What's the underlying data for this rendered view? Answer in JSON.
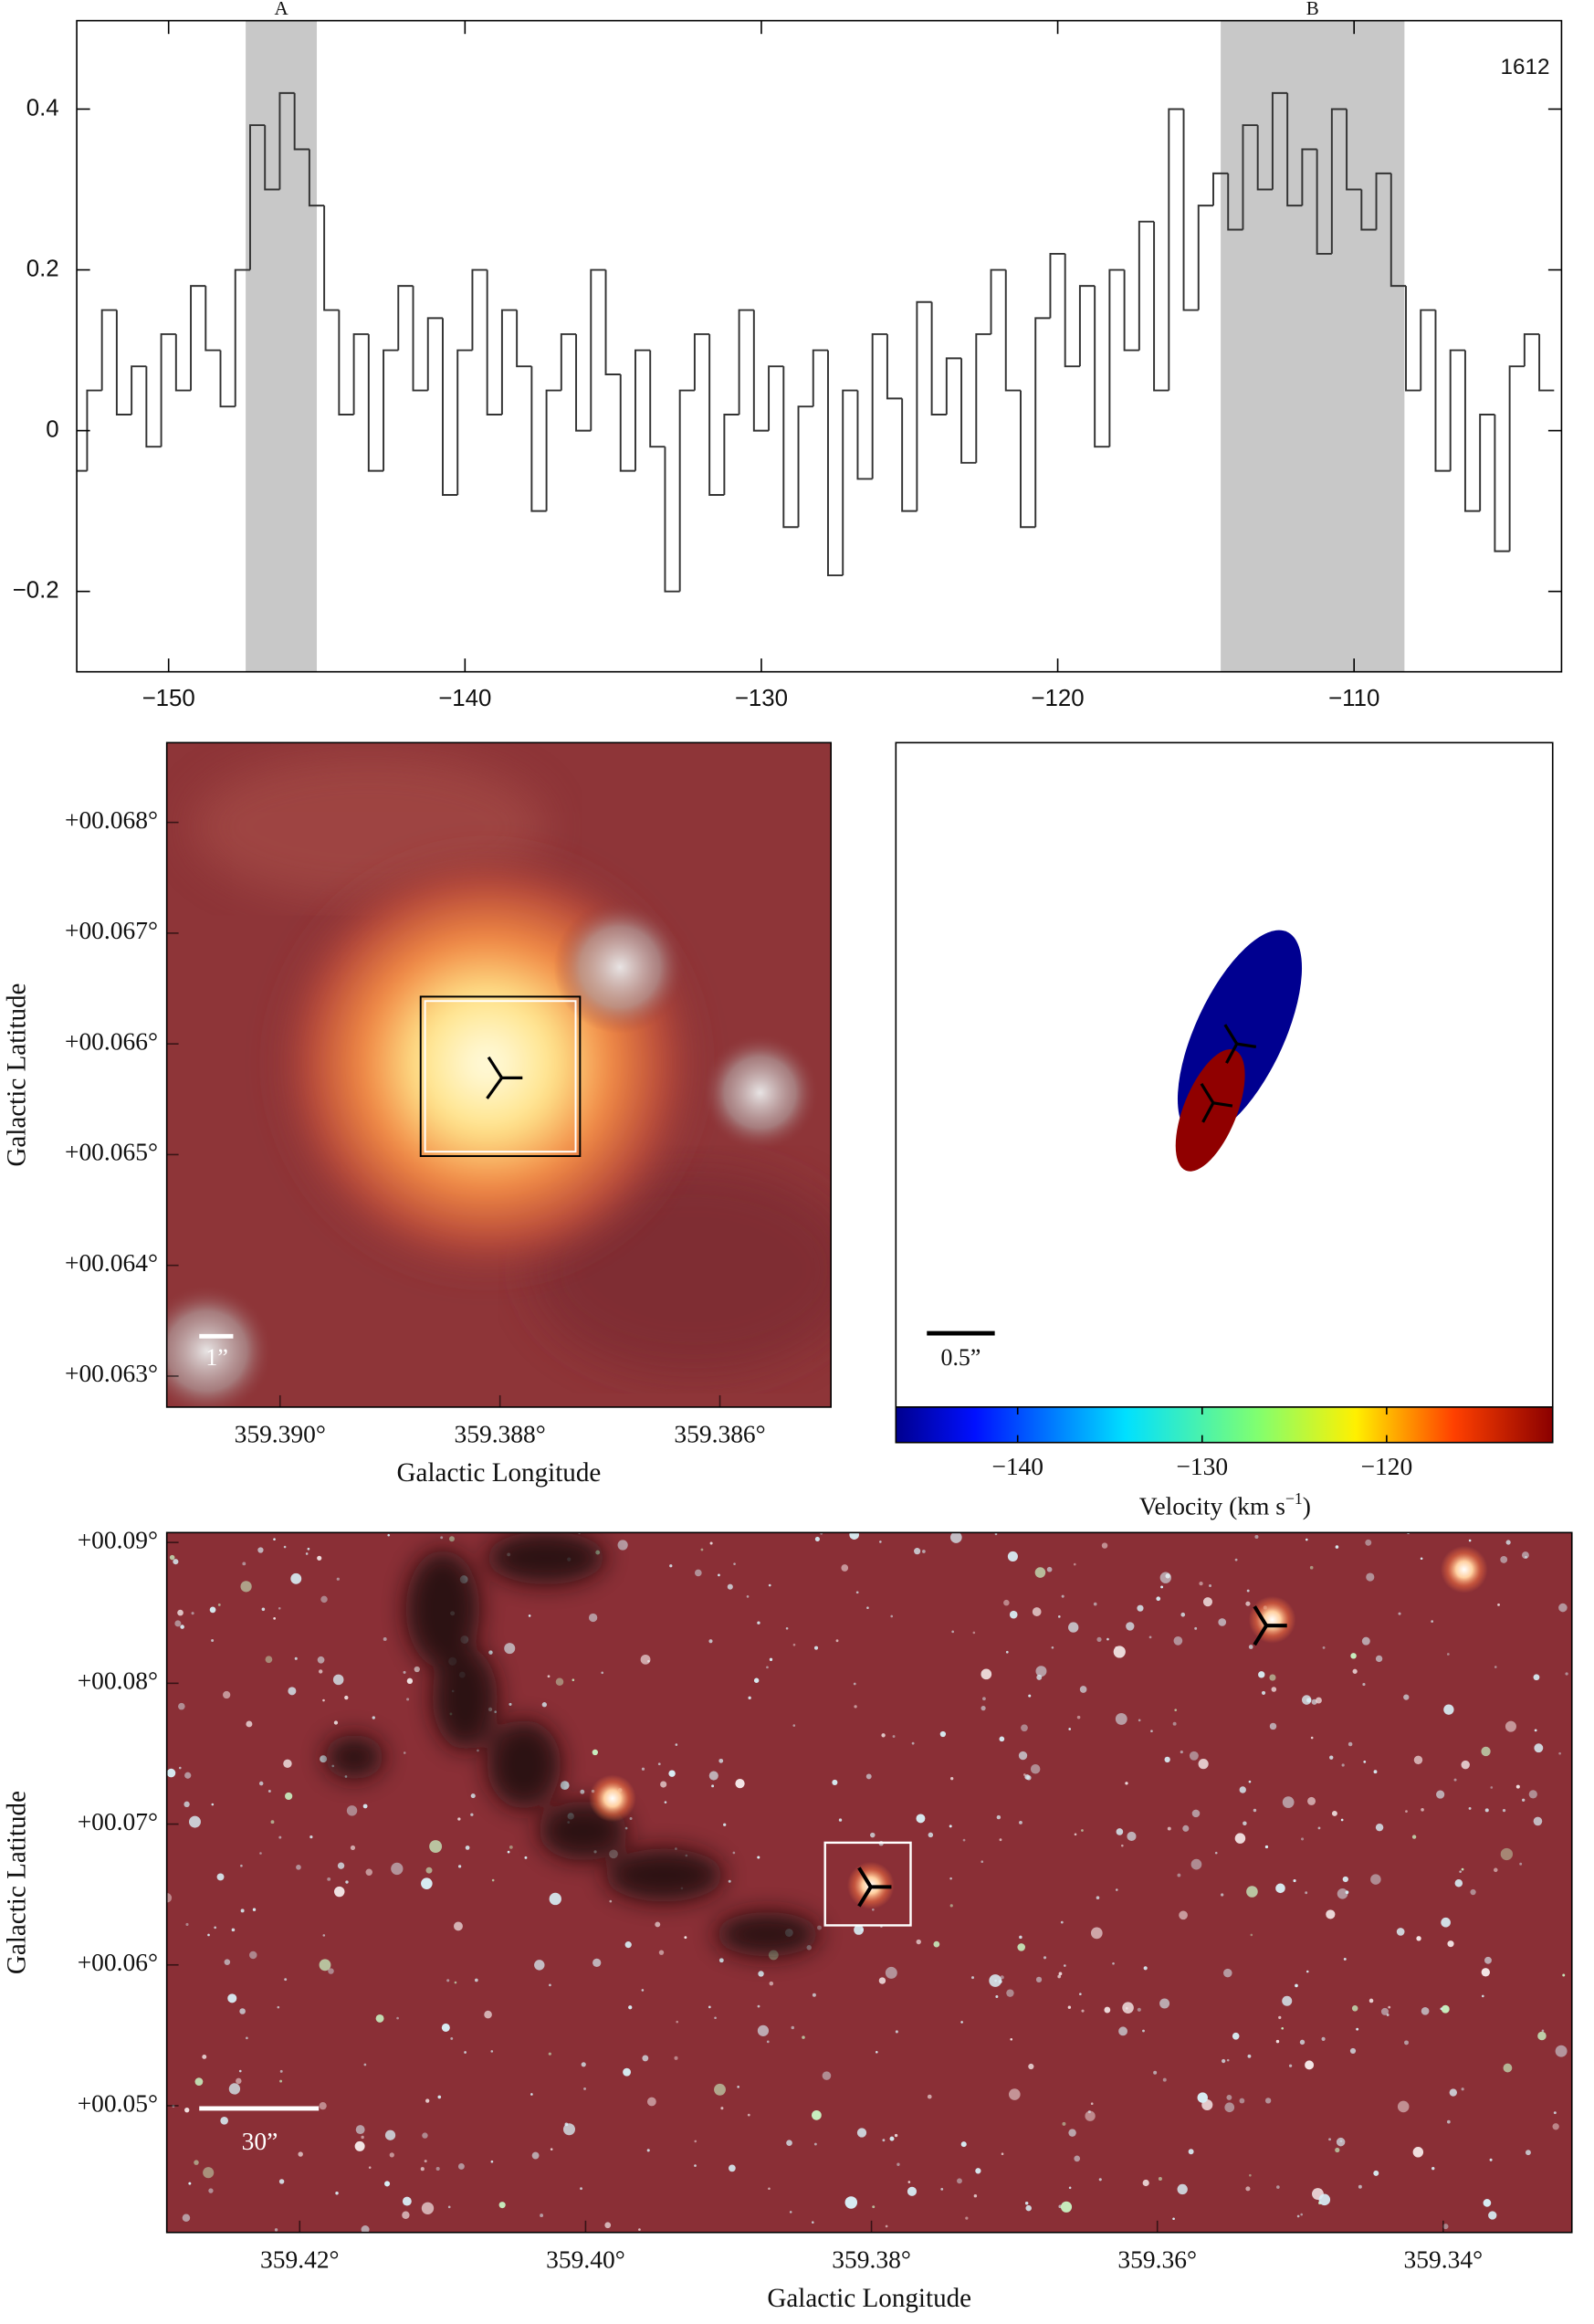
{
  "chart_data": [
    {
      "type": "step",
      "color": "#333333",
      "annotation": "1612",
      "regions": [
        {
          "label": "A",
          "range": [
            -147.4,
            -145.0
          ]
        },
        {
          "label": "B",
          "range": [
            -114.5,
            -108.3
          ]
        }
      ],
      "x": [
        -153,
        -152.5,
        -152,
        -151.5,
        -151,
        -150.5,
        -150,
        -149.5,
        -149,
        -148.5,
        -148,
        -147.5,
        -147,
        -146.5,
        -146,
        -145.5,
        -145,
        -144.5,
        -144,
        -143.5,
        -143,
        -142.5,
        -142,
        -141.5,
        -141,
        -140.5,
        -140,
        -139.5,
        -139,
        -138.5,
        -138,
        -137.5,
        -137,
        -136.5,
        -136,
        -135.5,
        -135,
        -134.5,
        -134,
        -133.5,
        -133,
        -132.5,
        -132,
        -131.5,
        -131,
        -130.5,
        -130,
        -129.5,
        -129,
        -128.5,
        -128,
        -127.5,
        -127,
        -126.5,
        -126,
        -125.5,
        -125,
        -124.5,
        -124,
        -123.5,
        -123,
        -122.5,
        -122,
        -121.5,
        -121,
        -120.5,
        -120,
        -119.5,
        -119,
        -118.5,
        -118,
        -117.5,
        -117,
        -116.5,
        -116,
        -115.5,
        -115,
        -114.5,
        -114,
        -113.5,
        -113,
        -112.5,
        -112,
        -111.5,
        -111,
        -110.5,
        -110,
        -109.5,
        -109,
        -108.5,
        -108,
        -107.5,
        -107,
        -106.5,
        -106,
        -105.5,
        -105,
        -104.5,
        -104,
        -103.5
      ],
      "values": [
        -0.05,
        0.05,
        0.15,
        0.02,
        0.08,
        -0.02,
        0.12,
        0.05,
        0.18,
        0.1,
        0.03,
        0.2,
        0.38,
        0.3,
        0.42,
        0.35,
        0.28,
        0.15,
        0.02,
        0.12,
        -0.05,
        0.1,
        0.18,
        0.05,
        0.14,
        -0.08,
        0.1,
        0.2,
        0.02,
        0.15,
        0.08,
        -0.1,
        0.05,
        0.12,
        0.0,
        0.2,
        0.07,
        -0.05,
        0.1,
        -0.02,
        -0.2,
        0.05,
        0.12,
        -0.08,
        0.02,
        0.15,
        0.0,
        0.08,
        -0.12,
        0.03,
        0.1,
        -0.18,
        0.05,
        -0.06,
        0.12,
        0.04,
        -0.1,
        0.16,
        0.02,
        0.09,
        -0.04,
        0.12,
        0.2,
        0.05,
        -0.12,
        0.14,
        0.22,
        0.08,
        0.18,
        -0.02,
        0.2,
        0.1,
        0.26,
        0.05,
        0.4,
        0.15,
        0.28,
        0.32,
        0.25,
        0.38,
        0.3,
        0.42,
        0.28,
        0.35,
        0.22,
        0.4,
        0.3,
        0.25,
        0.32,
        0.18,
        0.05,
        0.15,
        -0.05,
        0.1,
        -0.1,
        0.02,
        -0.15,
        0.08,
        0.12,
        0.05
      ],
      "xlim": [
        -153.1,
        -103.0
      ],
      "ylim": [
        -0.3,
        0.51
      ],
      "xticks": [
        {
          "value": -150,
          "label": "−150"
        },
        {
          "value": -140,
          "label": "−140"
        },
        {
          "value": -130,
          "label": "−130"
        },
        {
          "value": -120,
          "label": "−120"
        },
        {
          "value": -110,
          "label": "−110"
        }
      ],
      "yticks": [
        {
          "value": -0.2,
          "label": "−0.2"
        },
        0,
        0.2,
        0.4
      ]
    },
    {
      "type": "image",
      "xlabel": "Galactic Longitude",
      "ylabel": "Galactic Latitude",
      "scalebar": "1”",
      "xlim": [
        359.39103,
        359.38499
      ],
      "ylim": [
        0.06272,
        0.06872
      ],
      "xticks": [
        {
          "value": 359.39,
          "label": "359.390°"
        },
        {
          "value": 359.388,
          "label": "359.388°"
        },
        {
          "value": 359.386,
          "label": "359.386°"
        }
      ],
      "yticks": [
        {
          "value": 0.063,
          "label": "+00.063°"
        },
        {
          "value": 0.064,
          "label": "+00.064°"
        },
        {
          "value": 0.065,
          "label": "+00.065°"
        },
        {
          "value": 0.066,
          "label": "+00.066°"
        },
        {
          "value": 0.067,
          "label": "+00.067°"
        },
        {
          "value": 0.068,
          "label": "+00.068°"
        }
      ]
    },
    {
      "type": "colorbar",
      "xlabel": "Velocity (km s",
      "xlabel_sup": "−1",
      "xlabel_end": ")",
      "scalebar": "0.5”",
      "clim": [
        -146.6,
        -111.0
      ],
      "cticks": [
        {
          "value": -140,
          "label": "−140"
        },
        {
          "value": -130,
          "label": "−130"
        },
        {
          "value": -120,
          "label": "−120"
        }
      ]
    },
    {
      "type": "image",
      "xlabel": "Galactic Longitude",
      "ylabel": "Galactic Latitude",
      "scalebar": "30”",
      "xlim": [
        359.4293,
        359.331
      ],
      "ylim": [
        0.041,
        0.0907
      ],
      "xticks": [
        {
          "value": 359.42,
          "label": "359.42°"
        },
        {
          "value": 359.4,
          "label": "359.40°"
        },
        {
          "value": 359.38,
          "label": "359.38°"
        },
        {
          "value": 359.36,
          "label": "359.36°"
        },
        {
          "value": 359.34,
          "label": "359.34°"
        }
      ],
      "yticks": [
        {
          "value": 0.05,
          "label": "+00.05°"
        },
        {
          "value": 0.06,
          "label": "+00.06°"
        },
        {
          "value": 0.07,
          "label": "+00.07°"
        },
        {
          "value": 0.08,
          "label": "+00.08°"
        },
        {
          "value": 0.09,
          "label": "+00.09°"
        }
      ]
    }
  ]
}
